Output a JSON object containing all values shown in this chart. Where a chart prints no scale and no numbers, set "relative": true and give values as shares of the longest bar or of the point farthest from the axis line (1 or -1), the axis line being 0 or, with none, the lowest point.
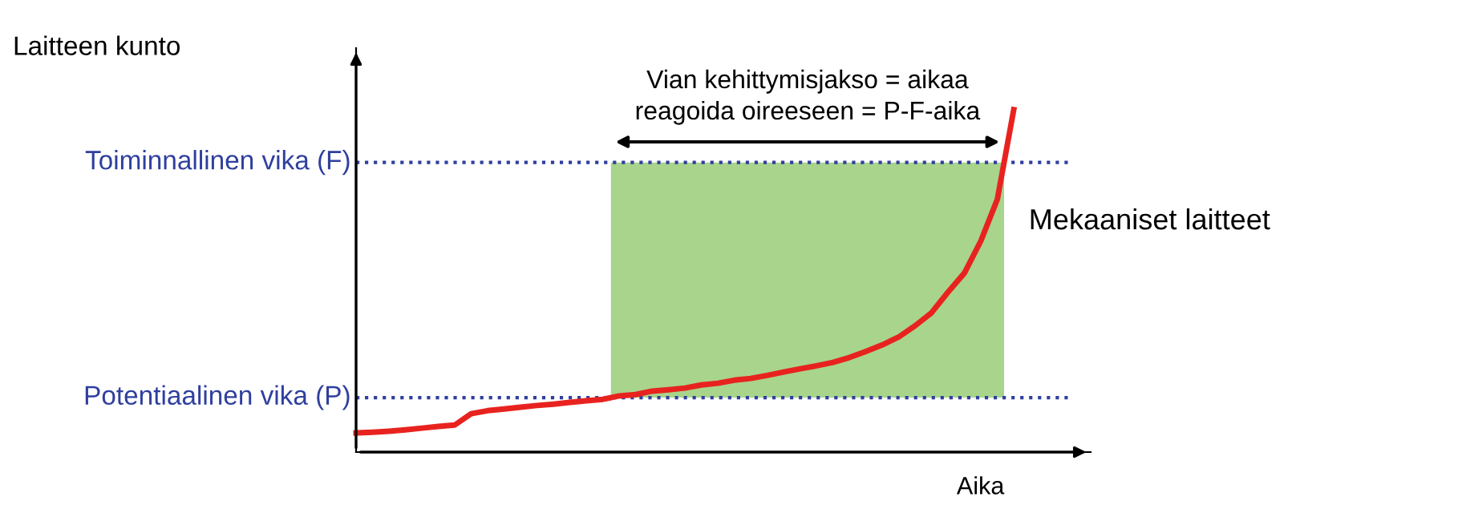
{
  "chart_data": {
    "type": "line",
    "xlabel": "Aika",
    "categories": [
      null,
      null,
      null,
      null,
      null,
      null,
      null,
      null,
      null,
      null,
      null,
      null,
      null,
      null,
      null,
      null,
      null,
      null,
      null,
      null,
      null,
      null,
      null,
      null,
      null,
      null,
      null,
      null,
      null,
      null,
      null,
      null,
      null,
      null,
      null,
      null,
      null,
      null,
      null,
      null,
      null
    ],
    "series": [
      {
        "color": "#e8231f",
        "values": [
          0.056,
          0.058,
          0.061,
          0.065,
          0.07,
          0.075,
          0.079,
          0.112,
          0.121,
          0.126,
          0.131,
          0.136,
          0.14,
          0.145,
          0.15,
          0.154,
          0.164,
          0.168,
          0.178,
          0.182,
          0.187,
          0.196,
          0.201,
          0.21,
          0.215,
          0.224,
          0.234,
          0.243,
          0.252,
          0.262,
          0.276,
          0.294,
          0.313,
          0.336,
          0.369,
          0.407,
          0.467,
          0.523,
          0.617,
          0.738,
          1.0
        ]
      }
    ],
    "relative": true,
    "ref_lines": [
      {
        "axis": "y",
        "value": 0.846,
        "label": "Toiminnallinen vika (F)",
        "color": "#2f3f9e",
        "line_style": "dotted"
      },
      {
        "axis": "y",
        "value": 0.159,
        "label": "Potentiaalinen vika (P)",
        "color": "#2f3f9e",
        "line_style": "dotted"
      }
    ],
    "bands": [
      {
        "axis": "y",
        "from": 0.159,
        "to": 0.846,
        "color": "#a8d48c"
      }
    ],
    "annotations": [
      "Vian kehittymisjakso = aikaa\nreagoida oireeseen = P-F-aika",
      "Mekaaniset laitteet",
      "Laitteen kunto"
    ],
    "marker": "none",
    "line_style": "solid"
  }
}
